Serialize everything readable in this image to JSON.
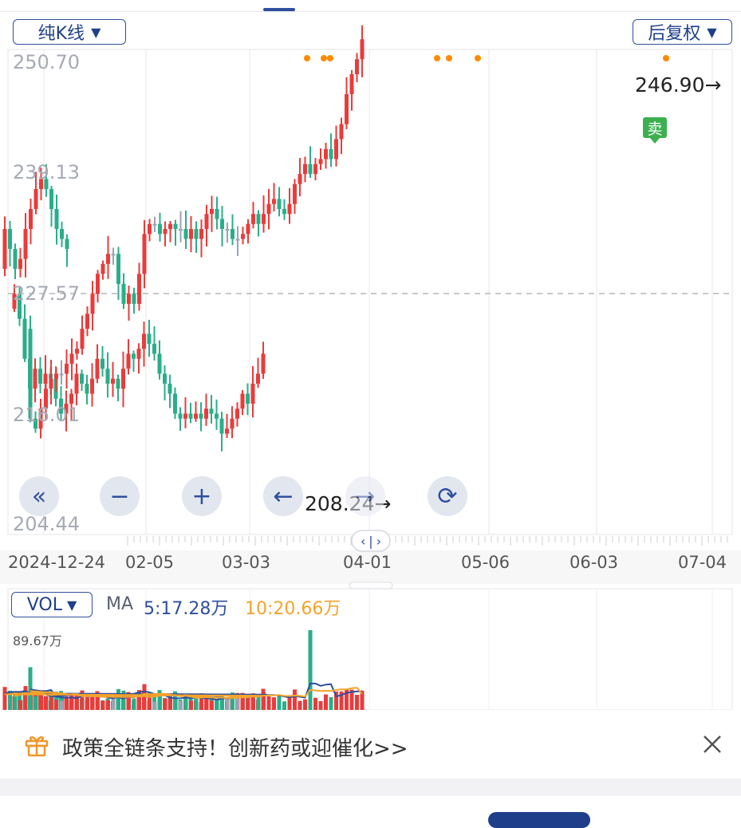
{
  "controls": {
    "kline_label": "纯K线",
    "adjust_label": "后复权",
    "caret": "▼",
    "buttons": [
      {
        "name": "zoom-to-start-button",
        "glyph": "«"
      },
      {
        "name": "zoom-out-button",
        "glyph": "−"
      },
      {
        "name": "zoom-in-button",
        "glyph": "+"
      },
      {
        "name": "pan-left-button",
        "glyph": "←"
      },
      {
        "name": "pan-right-button",
        "glyph": "→"
      },
      {
        "name": "rotate-screen-button",
        "glyph": "⟳"
      }
    ]
  },
  "chart_data": {
    "type": "candlestick",
    "y_ticks": [
      "250.70",
      "239.13",
      "227.57",
      "216.01",
      "204.44"
    ],
    "y_range": [
      204.44,
      250.7
    ],
    "reference_line": 227.57,
    "x_labels": [
      "2024-12-24",
      "02-05",
      "03-03",
      "04-01",
      "05-06",
      "06-03",
      "07-04"
    ],
    "annotations": {
      "high": "246.90→",
      "low": "208.24→",
      "sell_marker": "卖"
    },
    "colors": {
      "up": "#ea3b3b",
      "down": "#2aae8a",
      "flat": "#9aa3b5",
      "ma5": "#2f4f9e",
      "ma10": "#f5a32a",
      "marker": "#ff8a00",
      "sell": "#3cb050"
    },
    "segments": [
      {
        "start": [
          226,
          18
        ],
        "steps": [
          1.5,
          -2.5,
          -4,
          -3,
          2,
          -1.5,
          1,
          -0.5,
          -2,
          -1.5,
          1,
          1,
          2,
          -1,
          -1,
          1.5,
          2,
          -1,
          -1.5,
          0.5,
          -1,
          2,
          1.5,
          -0.5,
          1,
          1.5,
          -1,
          -1,
          -2,
          -1,
          -1,
          -2,
          -0.5,
          0.5,
          -0.5,
          0.5,
          -0.5,
          1,
          -0.5,
          -0.5,
          -1.5,
          0.5,
          1,
          1,
          1.5,
          -1,
          2,
          1,
          2
        ]
      },
      {
        "start": [
          230,
          6
        ],
        "steps": [
          4,
          -2,
          -2,
          1,
          3,
          2,
          2,
          1,
          -1,
          -2,
          -2,
          -1,
          -1
        ]
      },
      {
        "start": [
          224,
          38
        ],
        "steps": [
          -9,
          -1,
          2,
          2,
          1,
          0.5,
          0,
          1,
          1,
          0.5,
          2,
          1.5,
          2,
          2,
          1,
          1,
          0,
          -3,
          -2,
          1,
          -1,
          3,
          4,
          1,
          0,
          -1,
          0.5,
          0.5,
          -0.5,
          0,
          -1,
          1,
          -1,
          1,
          1.5,
          0.5,
          -1,
          -1,
          0,
          -1,
          0,
          0.5,
          1,
          1,
          -1,
          1,
          1,
          0.5,
          -1,
          -0.5,
          1,
          2,
          1,
          1,
          -1,
          1,
          0.5,
          1,
          -1,
          2,
          1.5,
          3,
          2,
          1.5,
          2
        ]
      }
    ],
    "markers": [
      {
        "x": 385
      },
      {
        "x": 406
      },
      {
        "x": 414
      },
      {
        "x": 548
      },
      {
        "x": 563
      },
      {
        "x": 599
      },
      {
        "x": 835
      }
    ]
  },
  "volume": {
    "label": "VOL",
    "ma_label": "MA",
    "ma5_text": "5:17.28万",
    "ma10_text": "10:20.66万",
    "max_label": "89.67万"
  },
  "promo": {
    "text": "政策全链条支持！创新药或迎催化>>"
  }
}
